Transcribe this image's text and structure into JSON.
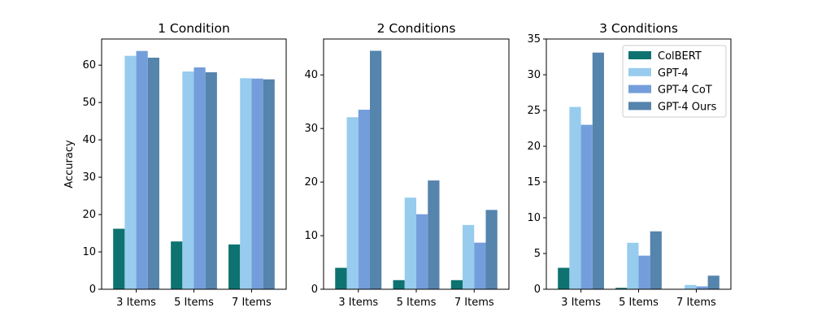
{
  "series_names": [
    "ColBERT",
    "GPT-4",
    "GPT-4 CoT",
    "GPT-4 Ours"
  ],
  "colors": [
    "#0e7370",
    "#97ccee",
    "#749edb",
    "#5584ac"
  ],
  "categories": [
    "3 Items",
    "5 Items",
    "7 Items"
  ],
  "ylabel": "Accuracy",
  "chart_data": [
    {
      "type": "bar",
      "title": "1 Condition",
      "categories": [
        "3 Items",
        "5 Items",
        "7 Items"
      ],
      "ylabel": "Accuracy",
      "ylim": [
        0,
        67
      ],
      "yticks": [
        0,
        10,
        20,
        30,
        40,
        50,
        60
      ],
      "legend": false,
      "series": [
        {
          "name": "ColBERT",
          "values": [
            16.2,
            12.8,
            12.0
          ]
        },
        {
          "name": "GPT-4",
          "values": [
            62.5,
            58.3,
            56.5
          ]
        },
        {
          "name": "GPT-4 CoT",
          "values": [
            63.8,
            59.4,
            56.4
          ]
        },
        {
          "name": "GPT-4 Ours",
          "values": [
            62.0,
            58.1,
            56.2
          ]
        }
      ]
    },
    {
      "type": "bar",
      "title": "2 Conditions",
      "categories": [
        "3 Items",
        "5 Items",
        "7 Items"
      ],
      "ylabel": "",
      "ylim": [
        0,
        46.7
      ],
      "yticks": [
        0,
        10,
        20,
        30,
        40
      ],
      "legend": false,
      "series": [
        {
          "name": "ColBERT",
          "values": [
            4.0,
            1.7,
            1.7
          ]
        },
        {
          "name": "GPT-4",
          "values": [
            32.1,
            17.1,
            12.0
          ]
        },
        {
          "name": "GPT-4 CoT",
          "values": [
            33.5,
            14.0,
            8.7
          ]
        },
        {
          "name": "GPT-4 Ours",
          "values": [
            44.5,
            20.3,
            14.8
          ]
        }
      ]
    },
    {
      "type": "bar",
      "title": "3 Conditions",
      "categories": [
        "3 Items",
        "5 Items",
        "7 Items"
      ],
      "ylabel": "",
      "ylim": [
        0,
        35
      ],
      "yticks": [
        0,
        5,
        10,
        15,
        20,
        25,
        30,
        35
      ],
      "legend": "top-right",
      "series": [
        {
          "name": "ColBERT",
          "values": [
            3.0,
            0.2,
            0.0
          ]
        },
        {
          "name": "GPT-4",
          "values": [
            25.5,
            6.5,
            0.6
          ]
        },
        {
          "name": "GPT-4 CoT",
          "values": [
            23.0,
            4.7,
            0.4
          ]
        },
        {
          "name": "GPT-4 Ours",
          "values": [
            33.1,
            8.1,
            1.9
          ]
        }
      ]
    }
  ]
}
